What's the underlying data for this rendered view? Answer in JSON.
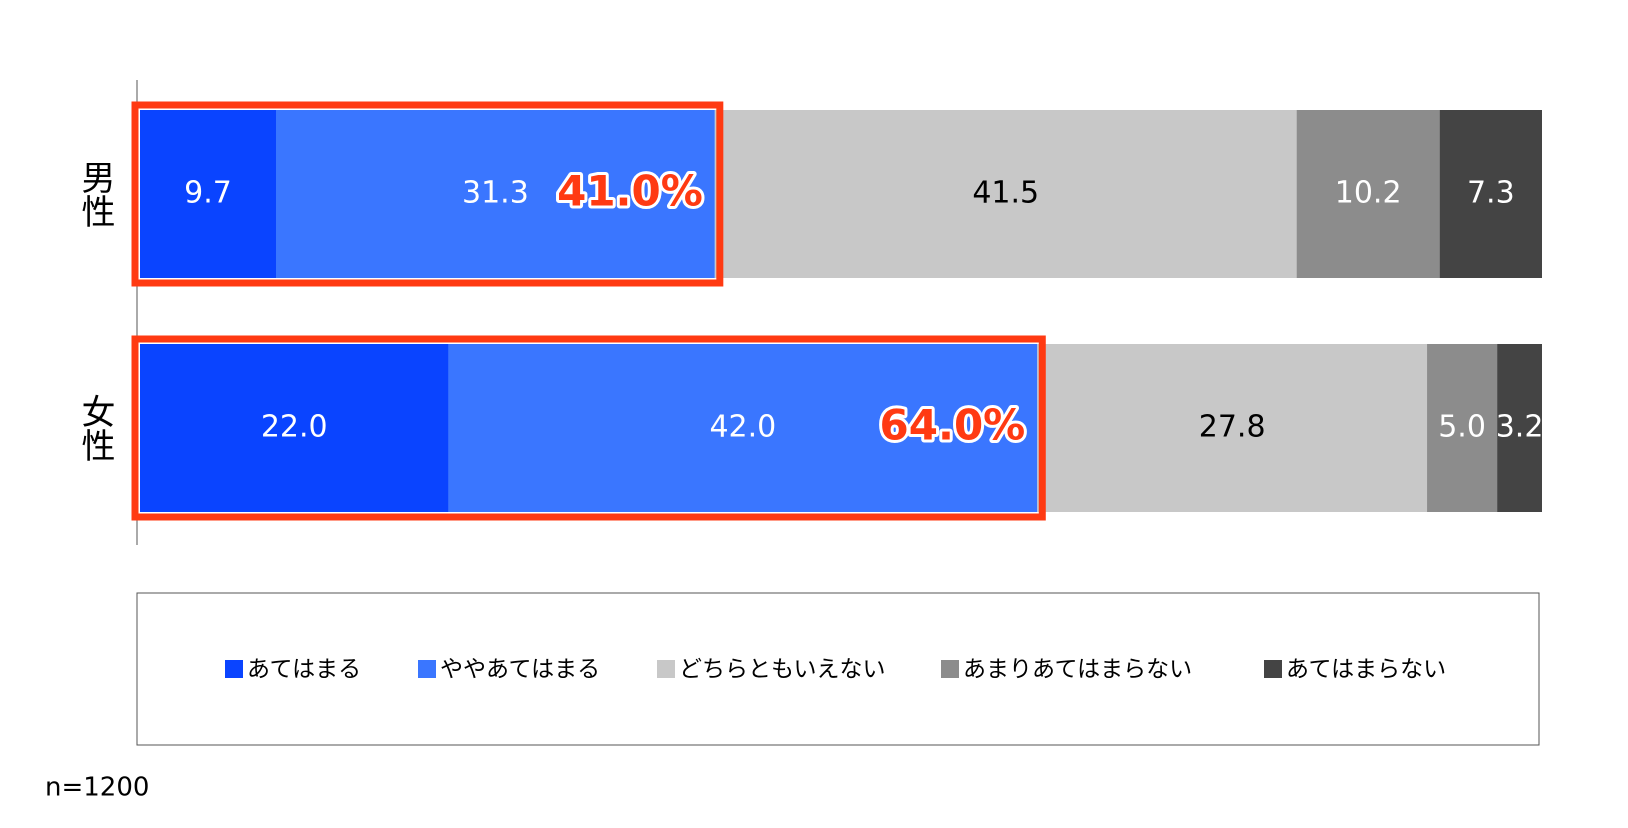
{
  "chart_data": {
    "type": "stacked-barh",
    "categories": [
      "男性",
      "女性"
    ],
    "series": [
      {
        "name": "あてはまる",
        "color": "#0a44ff",
        "label_color": "#ffffff",
        "values": [
          9.7,
          22.0
        ],
        "value_labels": [
          "9.7",
          "22.0"
        ]
      },
      {
        "name": "ややあてはまる",
        "color": "#3a76ff",
        "label_color": "#ffffff",
        "values": [
          31.3,
          42.0
        ],
        "value_labels": [
          "31.3",
          "42.0"
        ]
      },
      {
        "name": "どちらともいえない",
        "color": "#c8c8c8",
        "label_color": "#000000",
        "values": [
          41.5,
          27.8
        ]
      },
      {
        "name": "あまりあてはまらない",
        "color": "#8c8c8c",
        "label_color": "#ffffff",
        "values": [
          10.2,
          5.0
        ],
        "value_labels": [
          "10.2",
          "5.0"
        ]
      },
      {
        "name": "あてはまらない",
        "color": "#444444",
        "label_color": "#ffffff",
        "values": [
          7.3,
          3.2
        ]
      }
    ],
    "xlim": [
      0,
      100
    ],
    "annotations": [
      {
        "label": "41.0%",
        "value": 41.0
      },
      {
        "label": "64.0%",
        "value": 64.0
      }
    ],
    "highlight_color": "#ff3a12",
    "note": "n=1200"
  }
}
